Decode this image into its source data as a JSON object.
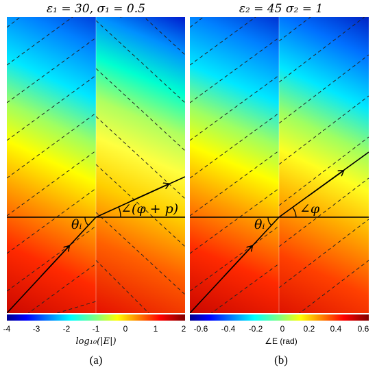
{
  "panels": [
    {
      "id": "a",
      "title": "ε₁ = 30, σ₁ = 0.5",
      "theta_label": "θᵢ",
      "angle_label": "∠(φ + p)",
      "colorbar": {
        "ticks": [
          "-4",
          "-3",
          "-2",
          "-1",
          "0",
          "1",
          "2"
        ],
        "label": "log₁₀(|E|)",
        "range": [
          -4,
          2
        ]
      },
      "sublabel_text": "(a)"
    },
    {
      "id": "b",
      "title": "ε₂ = 45 σ₂ = 1",
      "theta_label": "θᵢ",
      "angle_label": "∠φ",
      "colorbar": {
        "ticks": [
          "-0.6",
          "-0.4",
          "-0.2",
          "0",
          "0.2",
          "0.4",
          "0.6"
        ],
        "label": "∠E (rad)",
        "range": [
          -0.6,
          0.6
        ]
      },
      "sublabel_text": "(b)"
    }
  ],
  "colormap": "jet"
}
